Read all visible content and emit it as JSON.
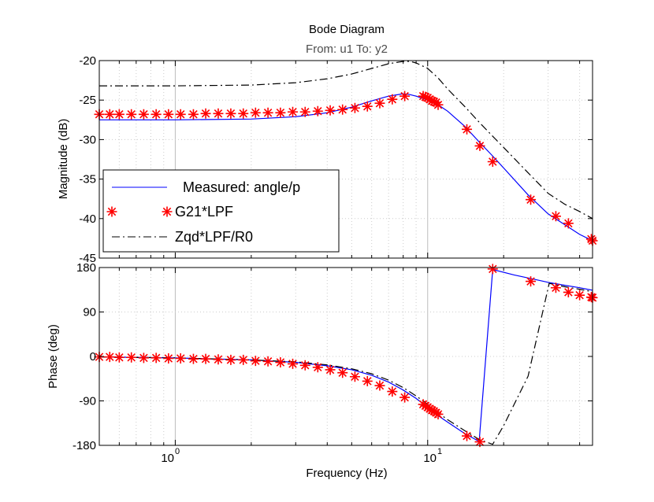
{
  "chart_data": {
    "type": "line",
    "title": "Bode Diagram",
    "subtitle": "From: u1  To: y2",
    "xlabel": "Frequency  (Hz)",
    "xscale": "log",
    "xlim": [
      0.5,
      45
    ],
    "x_tick_labels": [
      {
        "base": "10",
        "exp": "0",
        "value": 1
      },
      {
        "base": "10",
        "exp": "1",
        "value": 10
      }
    ],
    "grid": true,
    "legend": {
      "placement": "lower-left of magnitude panel",
      "entries": [
        "Measured: angle/p",
        "G21*LPF",
        "Zqd*LPF/R0"
      ]
    },
    "magnitude": {
      "ylabel": "Magnitude (dB)",
      "ylim": [
        -45,
        -20
      ],
      "yticks": [
        -45,
        -40,
        -35,
        -30,
        -25,
        -20
      ],
      "series": [
        {
          "name": "Measured: angle/p",
          "style": "solid",
          "color": "#0000ff",
          "x": [
            0.5,
            1,
            2,
            3,
            4,
            5,
            6,
            7,
            8,
            8.5,
            9,
            10,
            11,
            12,
            14,
            16,
            18,
            20,
            25,
            30,
            35,
            40,
            45
          ],
          "values": [
            -27.5,
            -27.5,
            -27.4,
            -27.1,
            -26.6,
            -25.9,
            -25.1,
            -24.5,
            -24.2,
            -24.3,
            -24.5,
            -25,
            -25.6,
            -26.4,
            -28.3,
            -30.3,
            -32,
            -33.6,
            -37,
            -39.4,
            -40.8,
            -42,
            -42.8
          ]
        },
        {
          "name": "G21*LPF",
          "style": "markers",
          "color": "#ff0000",
          "x": [
            0.5,
            0.55,
            0.6,
            0.67,
            0.75,
            0.84,
            0.94,
            1.05,
            1.18,
            1.32,
            1.48,
            1.66,
            1.86,
            2.08,
            2.33,
            2.61,
            2.92,
            3.27,
            3.67,
            4.11,
            4.6,
            5.15,
            5.77,
            6.46,
            7.24,
            8.11,
            9.6,
            9.8,
            10,
            10.2,
            10.4,
            10.6,
            10.8,
            11.0,
            14.3,
            16.1,
            18.1,
            25.6,
            32.2,
            36.1,
            45,
            44.5
          ],
          "values": [
            -26.8,
            -26.8,
            -26.8,
            -26.8,
            -26.8,
            -26.8,
            -26.8,
            -26.8,
            -26.8,
            -26.7,
            -26.7,
            -26.7,
            -26.7,
            -26.6,
            -26.6,
            -26.6,
            -26.5,
            -26.5,
            -26.4,
            -26.3,
            -26.2,
            -26,
            -25.8,
            -25.4,
            -24.9,
            -24.5,
            -24.5,
            -24.6,
            -24.7,
            -24.9,
            -25.1,
            -25.2,
            -25.3,
            -25.6,
            -28.7,
            -30.8,
            -32.8,
            -37.6,
            -39.7,
            -40.6,
            -42.8,
            -42.6
          ]
        },
        {
          "name": "Zqd*LPF/R0",
          "style": "dash-dot",
          "color": "#000000",
          "x": [
            0.5,
            1,
            2,
            3,
            4,
            5,
            6,
            7,
            8,
            8.5,
            9,
            10,
            11,
            12,
            14,
            16,
            18,
            20,
            25,
            30,
            35,
            40,
            45
          ],
          "values": [
            -23.2,
            -23.2,
            -23.1,
            -22.8,
            -22.3,
            -21.7,
            -21,
            -20.4,
            -20.1,
            -20.1,
            -20.3,
            -21,
            -22.2,
            -23.6,
            -25.8,
            -27.8,
            -29.5,
            -31,
            -34.2,
            -36.8,
            -38.2,
            -39.1,
            -40
          ]
        }
      ]
    },
    "phase": {
      "ylabel": "Phase (deg)",
      "ylim": [
        -180,
        180
      ],
      "yticks": [
        -180,
        -90,
        0,
        90,
        180
      ],
      "series": [
        {
          "name": "Measured: angle/p",
          "style": "solid",
          "color": "#0000ff",
          "x": [
            0.5,
            1,
            2,
            3,
            4,
            5,
            6,
            7,
            8,
            9,
            10,
            11,
            12,
            14,
            16,
            18.1,
            22,
            26,
            30,
            35,
            40,
            45
          ],
          "values": [
            -1,
            -3,
            -7,
            -12,
            -19,
            -27,
            -38,
            -52,
            -68,
            -85,
            -103,
            -120,
            -133,
            -156,
            -172,
            176,
            165,
            157,
            150,
            144,
            139,
            134
          ]
        },
        {
          "name": "G21*LPF",
          "style": "markers",
          "color": "#ff0000",
          "x": [
            0.5,
            0.55,
            0.6,
            0.67,
            0.75,
            0.84,
            0.94,
            1.05,
            1.18,
            1.32,
            1.48,
            1.66,
            1.86,
            2.08,
            2.33,
            2.61,
            2.92,
            3.27,
            3.67,
            4.11,
            4.6,
            5.15,
            5.77,
            6.46,
            7.24,
            8.11,
            9.6,
            9.8,
            10,
            10.2,
            10.4,
            10.6,
            10.8,
            11.0,
            14.3,
            16.1,
            18.1,
            25.6,
            32.2,
            36.1,
            40,
            44.5,
            45
          ],
          "values": [
            -1,
            -1,
            -2,
            -2,
            -3,
            -3,
            -4,
            -4,
            -5,
            -5,
            -6,
            -7,
            -7,
            -9,
            -10,
            -12,
            -15,
            -18,
            -22,
            -27,
            -33,
            -41,
            -50,
            -59,
            -71,
            -83,
            -97,
            -100,
            -103,
            -106,
            -109,
            -111,
            -114,
            -117,
            -161,
            -173,
            177,
            152,
            139,
            130,
            124,
            120,
            119
          ]
        },
        {
          "name": "Zqd*LPF/R0",
          "style": "dash-dot",
          "color": "#000000",
          "x": [
            0.5,
            1,
            2,
            3,
            4,
            5,
            6,
            7,
            8,
            9,
            10,
            11,
            12,
            14,
            16,
            18.1,
            20,
            25,
            30.3,
            35,
            40,
            45
          ],
          "values": [
            -1,
            -3,
            -7,
            -11,
            -17,
            -25,
            -35,
            -48,
            -63,
            -80,
            -97,
            -114,
            -128,
            -150,
            -168,
            -178,
            -140,
            -40,
            148,
            141,
            136,
            131
          ]
        }
      ]
    }
  }
}
